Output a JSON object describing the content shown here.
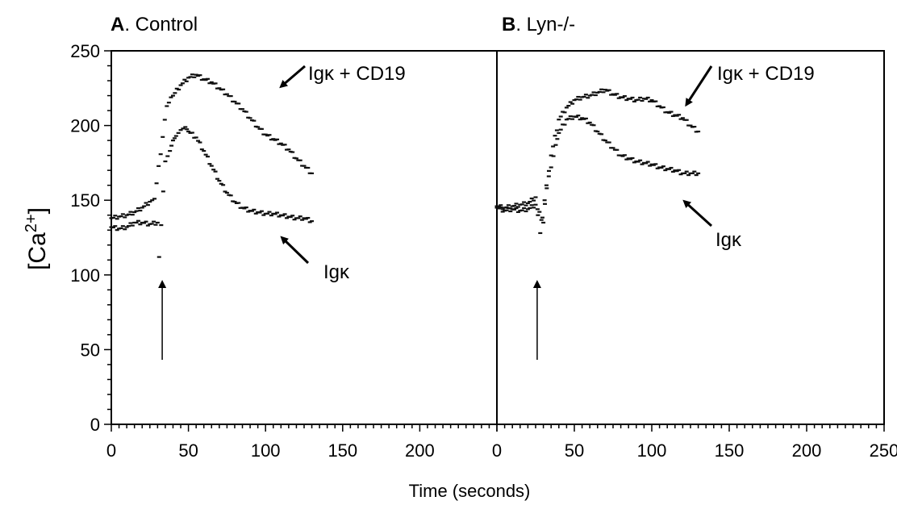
{
  "chart_data": [
    {
      "type": "scatter",
      "panel_letter": "A",
      "panel_name": ". Control",
      "ylabel_main": "[Ca",
      "ylabel_sup": "2+",
      "ylabel_end": "]",
      "xlim": [
        0,
        250
      ],
      "ylim": [
        0,
        250
      ],
      "x_ticks": [
        0,
        50,
        100,
        150,
        200
      ],
      "y_ticks": [
        0,
        50,
        100,
        150,
        200,
        250
      ],
      "series": [
        {
          "label_main": "Ig",
          "label_sym": "κ",
          "points": [
            [
              0,
              132
            ],
            [
              5,
              131
            ],
            [
              10,
              132
            ],
            [
              15,
              135
            ],
            [
              20,
              135
            ],
            [
              25,
              134
            ],
            [
              30,
              135
            ],
            [
              31,
              112
            ],
            [
              35,
              176
            ],
            [
              38,
              183
            ],
            [
              40,
              190
            ],
            [
              42,
              193
            ],
            [
              45,
              197
            ],
            [
              48,
              199
            ],
            [
              50,
              196
            ],
            [
              55,
              192
            ],
            [
              60,
              183
            ],
            [
              65,
              173
            ],
            [
              70,
              163
            ],
            [
              75,
              155
            ],
            [
              80,
              149
            ],
            [
              85,
              145
            ],
            [
              90,
              143
            ],
            [
              95,
              142
            ],
            [
              100,
              141
            ],
            [
              105,
              141
            ],
            [
              110,
              140
            ],
            [
              115,
              139
            ],
            [
              120,
              138
            ],
            [
              125,
              138
            ],
            [
              130,
              136
            ]
          ]
        },
        {
          "label_main": "Ig",
          "label_sym": "κ",
          "label_rest": " + CD19",
          "points": [
            [
              0,
              138
            ],
            [
              5,
              139
            ],
            [
              10,
              140
            ],
            [
              15,
              142
            ],
            [
              20,
              145
            ],
            [
              25,
              149
            ],
            [
              28,
              151
            ],
            [
              36,
              213
            ],
            [
              40,
              220
            ],
            [
              45,
              227
            ],
            [
              50,
              232
            ],
            [
              55,
              234
            ],
            [
              60,
              231
            ],
            [
              65,
              229
            ],
            [
              70,
              225
            ],
            [
              75,
              221
            ],
            [
              80,
              216
            ],
            [
              85,
              211
            ],
            [
              90,
              205
            ],
            [
              95,
              199
            ],
            [
              100,
              194
            ],
            [
              105,
              191
            ],
            [
              110,
              188
            ],
            [
              115,
              184
            ],
            [
              120,
              178
            ],
            [
              125,
              173
            ],
            [
              130,
              168
            ]
          ]
        }
      ],
      "stimulus_arrow_x": 33
    },
    {
      "type": "scatter",
      "panel_letter": "B",
      "panel_name": ". Lyn-/-",
      "xlim": [
        0,
        250
      ],
      "ylim": [
        0,
        250
      ],
      "x_ticks": [
        0,
        50,
        100,
        150,
        200,
        250
      ],
      "series": [
        {
          "label_main": "Ig",
          "label_sym": "κ",
          "points": [
            [
              0,
              145
            ],
            [
              5,
              143
            ],
            [
              10,
              144
            ],
            [
              15,
              143
            ],
            [
              20,
              144
            ],
            [
              25,
              147
            ],
            [
              30,
              135
            ],
            [
              32,
              160
            ],
            [
              35,
              172
            ],
            [
              38,
              187
            ],
            [
              40,
              195
            ],
            [
              45,
              204
            ],
            [
              50,
              206
            ],
            [
              55,
              205
            ],
            [
              60,
              202
            ],
            [
              65,
              196
            ],
            [
              70,
              190
            ],
            [
              75,
              185
            ],
            [
              80,
              180
            ],
            [
              85,
              178
            ],
            [
              90,
              176
            ],
            [
              95,
              175
            ],
            [
              100,
              174
            ],
            [
              105,
              172
            ],
            [
              110,
              171
            ],
            [
              115,
              170
            ],
            [
              120,
              168
            ],
            [
              125,
              168
            ],
            [
              130,
              168
            ]
          ]
        },
        {
          "label_main": "Ig",
          "label_sym": "κ",
          "label_rest": " + CD19",
          "points": [
            [
              0,
              146
            ],
            [
              5,
              145
            ],
            [
              10,
              146
            ],
            [
              15,
              147
            ],
            [
              20,
              148
            ],
            [
              25,
              152
            ],
            [
              28,
              128
            ],
            [
              35,
              180
            ],
            [
              40,
              204
            ],
            [
              45,
              212
            ],
            [
              50,
              217
            ],
            [
              55,
              219
            ],
            [
              60,
              220
            ],
            [
              65,
              222
            ],
            [
              70,
              224
            ],
            [
              75,
              221
            ],
            [
              80,
              219
            ],
            [
              85,
              218
            ],
            [
              90,
              217
            ],
            [
              95,
              218
            ],
            [
              100,
              217
            ],
            [
              105,
              213
            ],
            [
              110,
              209
            ],
            [
              115,
              207
            ],
            [
              120,
              205
            ],
            [
              125,
              200
            ],
            [
              130,
              196
            ]
          ]
        }
      ],
      "stimulus_arrow_x": 26
    }
  ],
  "shared_xlabel": "Time (seconds)"
}
